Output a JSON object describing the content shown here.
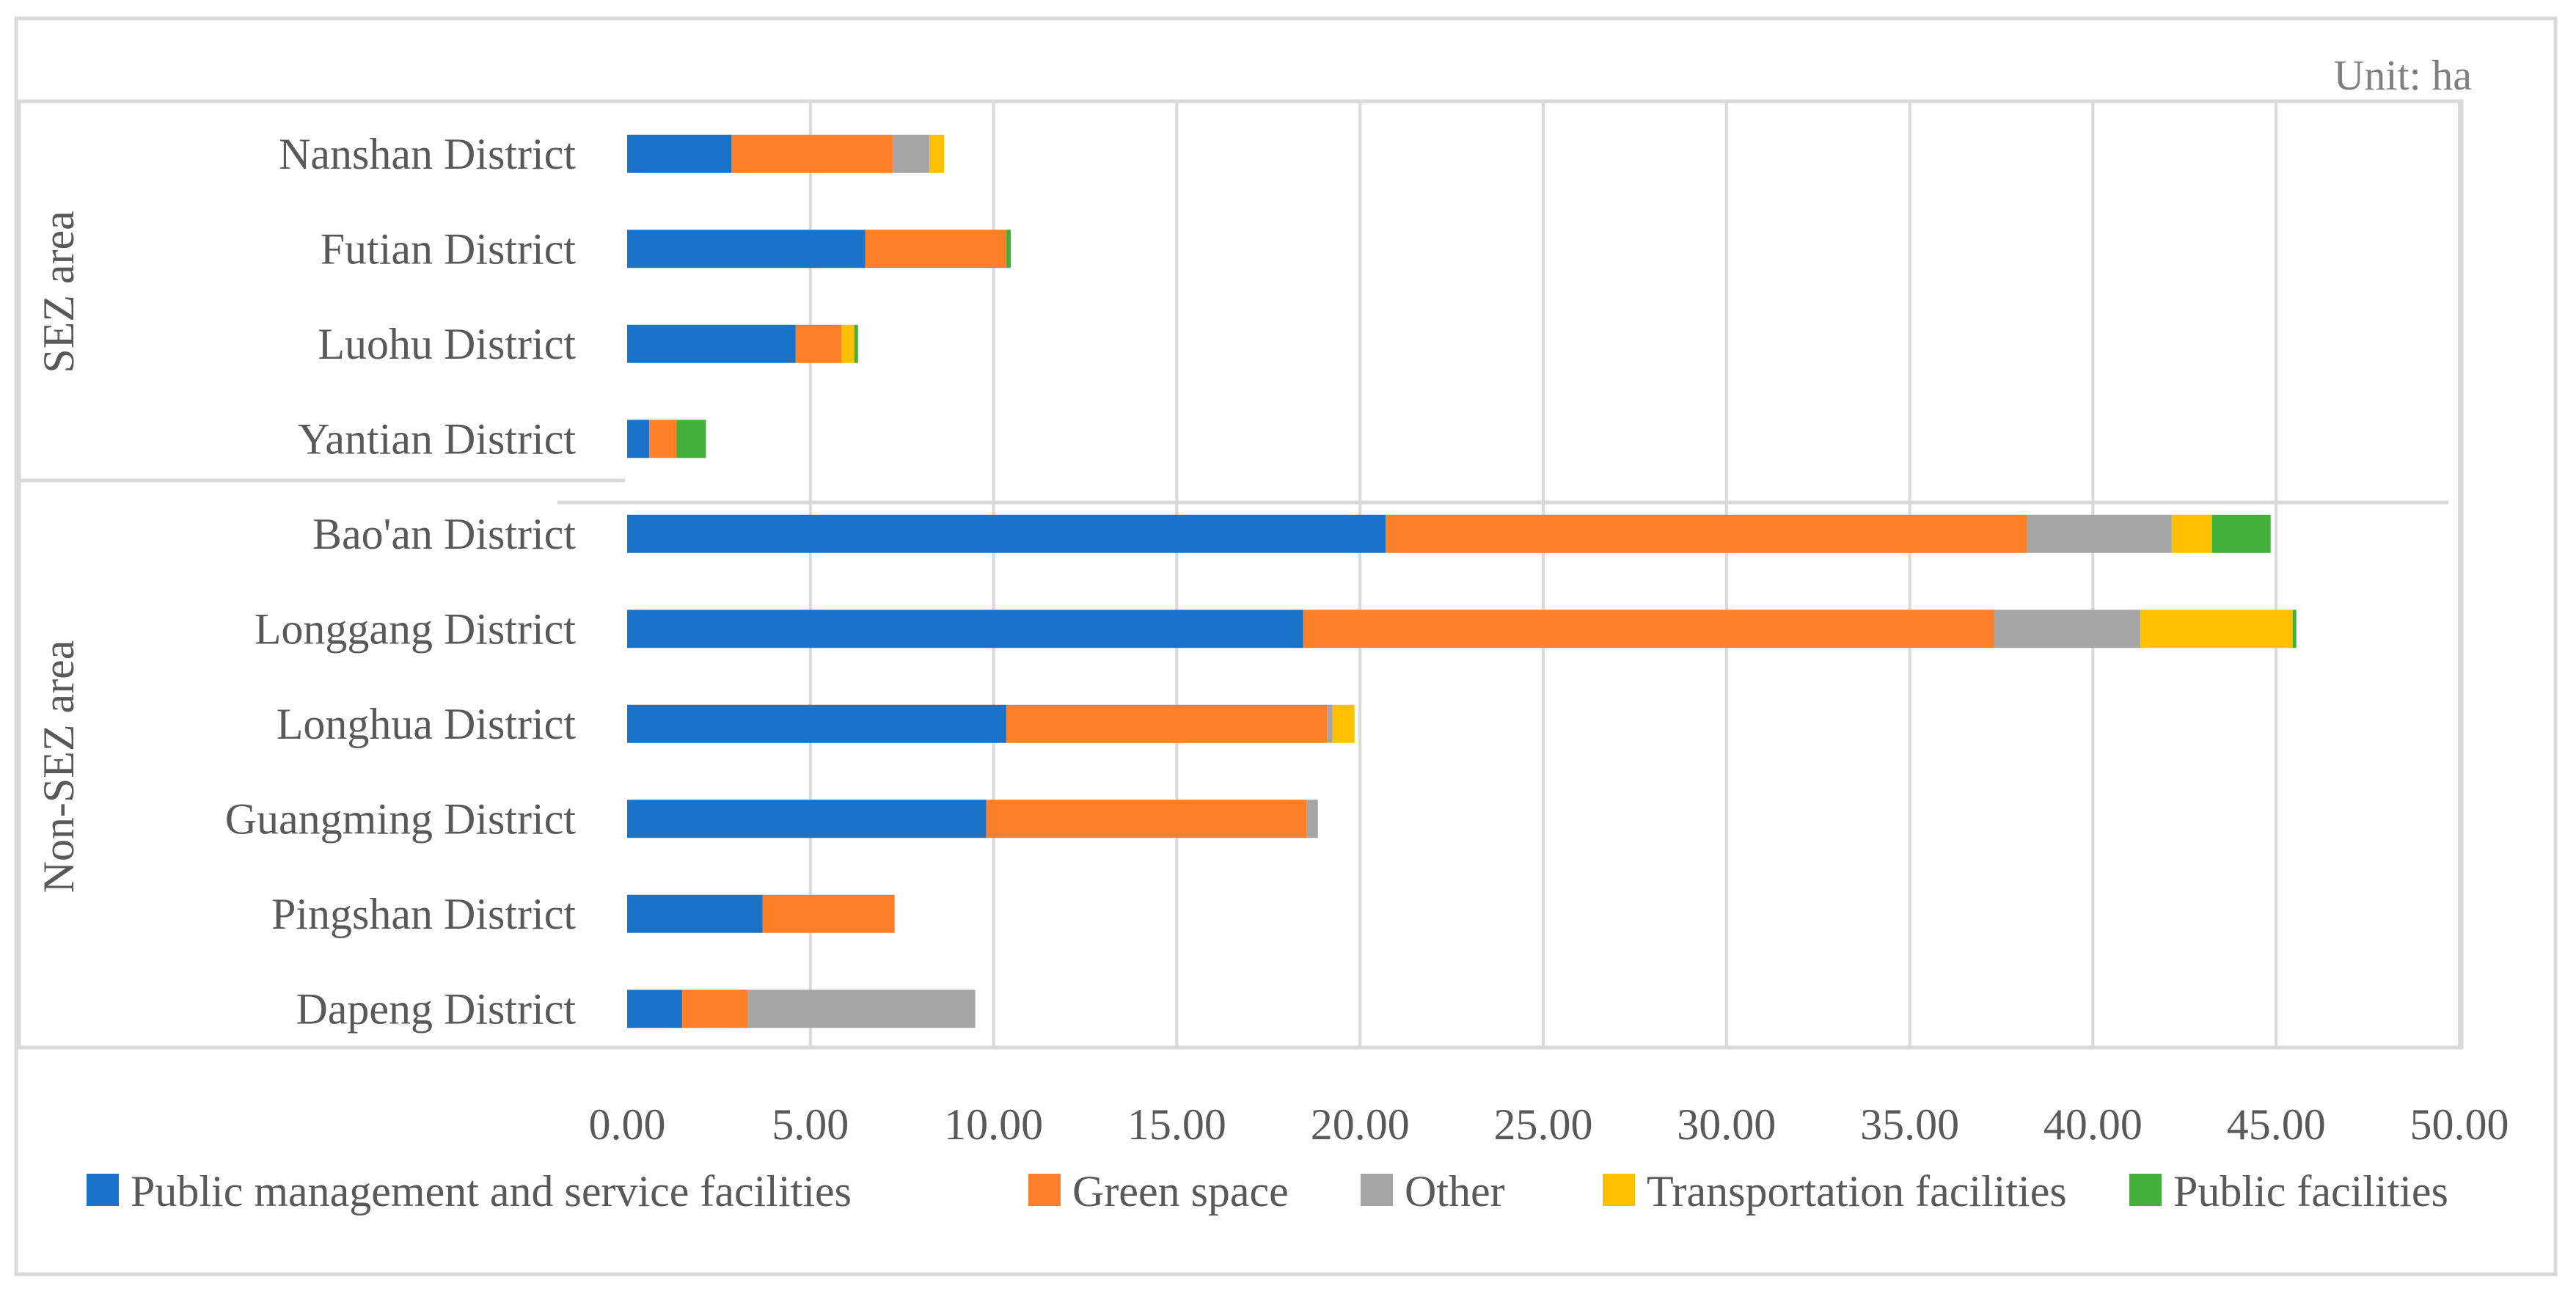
{
  "chart_data": {
    "type": "bar",
    "orientation": "horizontal",
    "stacked": true,
    "unit": "Unit: ha",
    "groups": [
      {
        "label": "SEZ area",
        "categories": [
          "Nanshan District",
          "Futian District",
          "Luohu District",
          "Yantian District"
        ]
      },
      {
        "label": "Non-SEZ area",
        "categories": [
          "Bao'an District",
          "Longgang District",
          "Longhua District",
          "Guangming District",
          "Pingshan District",
          "Dapeng District"
        ]
      }
    ],
    "categories": [
      "Nanshan District",
      "Futian District",
      "Luohu District",
      "Yantian District",
      "Bao'an District",
      "Longgang District",
      "Longhua District",
      "Guangming District",
      "Pingshan District",
      "Dapeng District"
    ],
    "series": [
      {
        "name": "Public management and service facilities",
        "color": "#1a73c8",
        "values": [
          2.85,
          6.5,
          4.6,
          0.6,
          20.7,
          18.45,
          10.35,
          9.8,
          3.7,
          1.5
        ]
      },
      {
        "name": "Green space",
        "color": "#fd7f28",
        "values": [
          4.4,
          3.85,
          1.25,
          0.75,
          17.5,
          18.85,
          8.75,
          8.75,
          3.6,
          1.8
        ]
      },
      {
        "name": "Other",
        "color": "#a5a5a5",
        "values": [
          1.0,
          0.0,
          0.0,
          0.0,
          3.95,
          4.0,
          0.15,
          0.3,
          0.0,
          6.2
        ]
      },
      {
        "name": "Transportation facilities",
        "color": "#ffc000",
        "values": [
          0.4,
          0.0,
          0.35,
          0.0,
          1.1,
          4.15,
          0.6,
          0.0,
          0.0,
          0.0
        ]
      },
      {
        "name": "Public facilities",
        "color": "#44b03c",
        "values": [
          0.0,
          0.12,
          0.1,
          0.8,
          1.6,
          0.1,
          0.0,
          0.0,
          0.0,
          0.0
        ]
      }
    ],
    "xlim": [
      0,
      50
    ],
    "xticks": [
      "0.00",
      "5.00",
      "10.00",
      "15.00",
      "20.00",
      "25.00",
      "30.00",
      "35.00",
      "40.00",
      "45.00",
      "50.00"
    ],
    "grid": true,
    "legend_position": "bottom"
  }
}
